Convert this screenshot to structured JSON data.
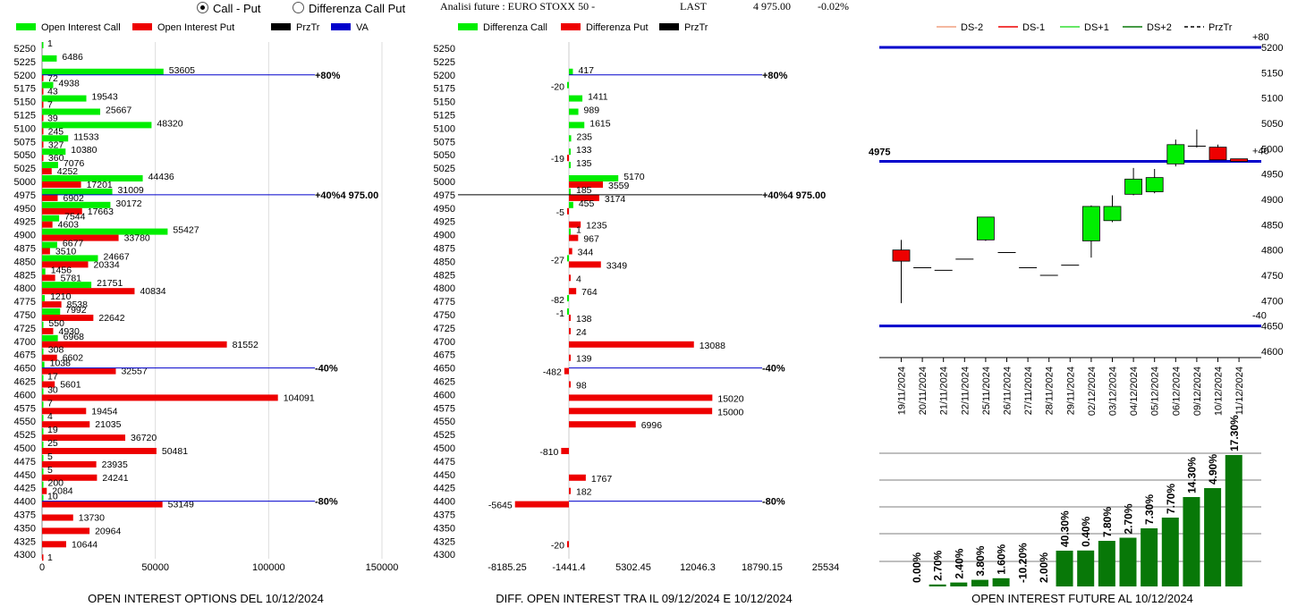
{
  "header": {
    "radio_call_put": "Call - Put",
    "radio_diff": "Differenza Call Put",
    "analysis_title": "Analisi future : EURO STOXX 50 -",
    "last_label": "LAST",
    "last_value": "4 975.00",
    "last_change": "-0.02%"
  },
  "colors": {
    "green": "#00ee00",
    "red": "#ee0000",
    "blue": "#0000cc",
    "dark_green": "#087808",
    "black": "#000000"
  },
  "chart_data": [
    {
      "type": "bar",
      "title": "OPEN INTEREST OPTIONS DEL 10/12/2024",
      "legend": [
        "Open Interest Call",
        "Open Interest Put",
        "PrzTr",
        "VA"
      ],
      "strikes": [
        5250,
        5225,
        5200,
        5175,
        5150,
        5125,
        5100,
        5075,
        5050,
        5025,
        5000,
        4975,
        4950,
        4925,
        4900,
        4875,
        4850,
        4825,
        4800,
        4775,
        4750,
        4725,
        4700,
        4675,
        4650,
        4625,
        4600,
        4575,
        4550,
        4525,
        4500,
        4475,
        4450,
        4425,
        4400,
        4375,
        4350,
        4325,
        4300
      ],
      "series": [
        {
          "name": "Open Interest Call",
          "values": [
            1,
            6486,
            53605,
            4938,
            19543,
            25667,
            48320,
            11533,
            10380,
            7076,
            44436,
            31009,
            30172,
            7544,
            55427,
            6677,
            24667,
            1456,
            21751,
            1210,
            7992,
            550,
            6968,
            308,
            1038,
            17,
            30,
            7,
            4,
            19,
            25,
            5,
            5,
            200,
            10,
            0,
            0,
            0,
            0
          ]
        },
        {
          "name": "Open Interest Put",
          "values": [
            0,
            0,
            72,
            43,
            7,
            39,
            245,
            327,
            360,
            4252,
            17201,
            6902,
            17663,
            4603,
            33780,
            3510,
            20334,
            5781,
            40834,
            8538,
            22642,
            4930,
            81552,
            6602,
            32557,
            5601,
            104091,
            19454,
            21035,
            36720,
            50481,
            23935,
            24241,
            2084,
            53149,
            13730,
            20964,
            10644,
            1
          ]
        }
      ],
      "xlim": [
        0,
        150000
      ],
      "xticks": [
        "0",
        "50000",
        "100000",
        "150000"
      ],
      "level_lines": [
        {
          "strike": 5200,
          "label": "+80%"
        },
        {
          "strike": 4975,
          "label": "+40%4 975.00"
        },
        {
          "strike": 4650,
          "label": "-40%"
        },
        {
          "strike": 4400,
          "label": "-80%"
        }
      ]
    },
    {
      "type": "bar",
      "title": "DIFF. OPEN INTEREST TRA IL 09/12/2024 E 10/12/2024",
      "legend": [
        "Differenza Call",
        "Differenza Put",
        "PrzTr"
      ],
      "strikes": [
        5250,
        5225,
        5200,
        5175,
        5150,
        5125,
        5100,
        5075,
        5050,
        5025,
        5000,
        4975,
        4950,
        4925,
        4900,
        4875,
        4850,
        4825,
        4800,
        4775,
        4750,
        4725,
        4700,
        4675,
        4650,
        4625,
        4600,
        4575,
        4550,
        4525,
        4500,
        4475,
        4450,
        4425,
        4400,
        4375,
        4350,
        4325,
        4300
      ],
      "series": [
        {
          "name": "Differenza Call",
          "values": [
            null,
            null,
            417,
            -20,
            1411,
            989,
            1615,
            235,
            133,
            135,
            5170,
            185,
            455,
            null,
            1,
            null,
            -27,
            null,
            null,
            -82,
            -1,
            null,
            null,
            null,
            null,
            null,
            null,
            null,
            null,
            null,
            null,
            null,
            null,
            null,
            null,
            null,
            null,
            null,
            null
          ]
        },
        {
          "name": "Differenza Put",
          "values": [
            null,
            null,
            null,
            null,
            null,
            null,
            null,
            null,
            -19,
            null,
            3559,
            3174,
            -5,
            1235,
            967,
            344,
            3349,
            4,
            764,
            null,
            138,
            24,
            13088,
            139,
            -482,
            98,
            15020,
            15000,
            6996,
            null,
            -810,
            null,
            1767,
            182,
            -5645,
            null,
            null,
            -20,
            null
          ]
        }
      ],
      "xlim": [
        -8185.25,
        25534
      ],
      "xticks": [
        "-8185.25",
        "-1441.4",
        "5302.45",
        "12046.3",
        "18790.15",
        "25534"
      ],
      "level_lines": [
        {
          "strike": 5200,
          "label": "+80%"
        },
        {
          "strike": 4975,
          "label": "+40%4 975.00"
        },
        {
          "strike": 4650,
          "label": "-40%"
        },
        {
          "strike": 4400,
          "label": "-80%"
        }
      ]
    },
    {
      "type": "candlestick",
      "legend": [
        "DS-2",
        "DS-1",
        "DS+1",
        "DS+2",
        "PrzTr"
      ],
      "dates": [
        "19/11/2024",
        "20/11/2024",
        "21/11/2024",
        "22/11/2024",
        "25/11/2024",
        "26/11/2024",
        "27/11/2024",
        "28/11/2024",
        "29/11/2024",
        "02/12/2024",
        "03/12/2024",
        "04/12/2024",
        "05/12/2024",
        "06/12/2024",
        "09/12/2024",
        "10/12/2024",
        "11/12/2024"
      ],
      "ohlc": [
        [
          4800,
          4820,
          4695,
          4778
        ],
        [
          4765,
          4765,
          4765,
          4765
        ],
        [
          4760,
          4760,
          4760,
          4760
        ],
        [
          4782,
          4782,
          4782,
          4782
        ],
        [
          4820,
          4865,
          4818,
          4865
        ],
        [
          4795,
          4795,
          4795,
          4795
        ],
        [
          4765,
          4765,
          4765,
          4765
        ],
        [
          4750,
          4750,
          4750,
          4750
        ],
        [
          4770,
          4770,
          4770,
          4770
        ],
        [
          4818,
          4888,
          4785,
          4886
        ],
        [
          4858,
          4908,
          4855,
          4886
        ],
        [
          4910,
          4962,
          4908,
          4940
        ],
        [
          4915,
          4960,
          4912,
          4943
        ],
        [
          4970,
          5018,
          4965,
          5008
        ],
        [
          5005,
          5038,
          5002,
          5005
        ],
        [
          5003,
          5008,
          4980,
          4978
        ],
        [
          4980,
          4980,
          4975,
          4975
        ]
      ],
      "ylim": [
        4600,
        5200
      ],
      "yticks": [
        "4600",
        "4650",
        "4700",
        "4750",
        "4800",
        "4850",
        "4900",
        "4950",
        "5000",
        "5050",
        "5100",
        "5150",
        "5200"
      ],
      "hlines": [
        {
          "value": 5200,
          "label": "+80"
        },
        {
          "value": 4975,
          "label": "4975",
          "right_label": "+40"
        },
        {
          "value": 4650,
          "label": "-40"
        }
      ]
    },
    {
      "type": "bar",
      "title": "OPEN INTEREST FUTURE AL 10/12/2024",
      "labels": [
        "0.00%",
        "2.70%",
        "2.40%",
        "3.80%",
        "1.60%",
        "-10.20%",
        "2.00%",
        "40.30%",
        "0.40%",
        "7.80%",
        "2.70%",
        "7.30%",
        "7.70%",
        "14.30%",
        "4.90%",
        "17.30%"
      ],
      "values": [
        0,
        2.2,
        4.4,
        7.4,
        9.2,
        0,
        0,
        40,
        40.2,
        51,
        54.5,
        65,
        77,
        100,
        110,
        147
      ]
    }
  ]
}
